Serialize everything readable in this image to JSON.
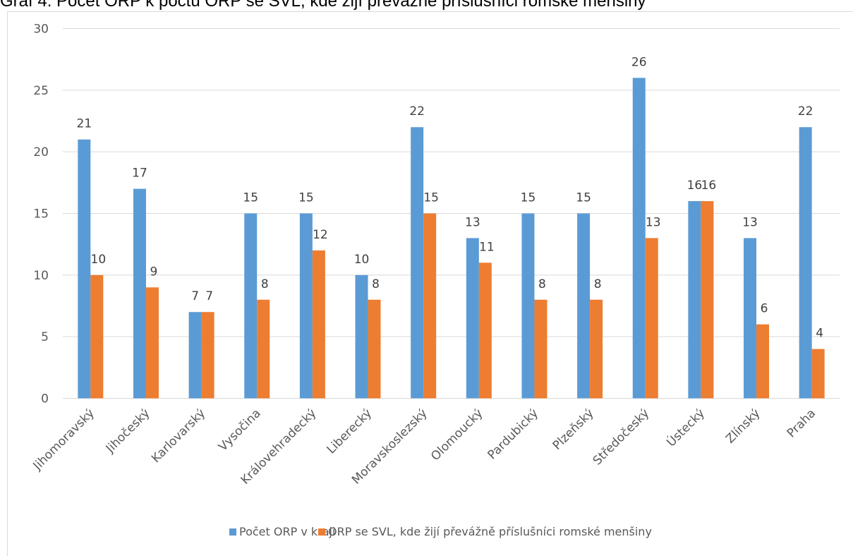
{
  "page": {
    "title": "Graf 4: Počet ORP k počtu ORP se SVL, kde žijí převážně příslušníci romské menšiny"
  },
  "chart_data": {
    "type": "bar",
    "title": "Graf 4: Počet ORP k počtu ORP se SVL, kde žijí převážně příslušníci romské menšiny",
    "xlabel": "",
    "ylabel": "",
    "ylim": [
      0,
      30
    ],
    "yticks": [
      0,
      5,
      10,
      15,
      20,
      25,
      30
    ],
    "grid": true,
    "legend_position": "bottom",
    "categories": [
      "Jihomoravský",
      "Jihočeský",
      "Karlovarský",
      "Vysočina",
      "Královehradecký",
      "Liberecký",
      "Moravskoslezský",
      "Olomoucký",
      "Pardubický",
      "Plzeňský",
      "Středočeský",
      "Ústecký",
      "Zlínský",
      "Praha"
    ],
    "series": [
      {
        "name": "Počet ORP v kraji",
        "color": "#5b9bd5",
        "values": [
          21,
          17,
          7,
          15,
          15,
          10,
          22,
          13,
          15,
          15,
          26,
          16,
          13,
          22
        ]
      },
      {
        "name": "ORP se SVL, kde žijí převážně příslušníci romské menšiny",
        "color": "#ed7d31",
        "values": [
          10,
          9,
          7,
          8,
          12,
          8,
          15,
          11,
          8,
          8,
          13,
          16,
          6,
          4
        ]
      }
    ]
  }
}
